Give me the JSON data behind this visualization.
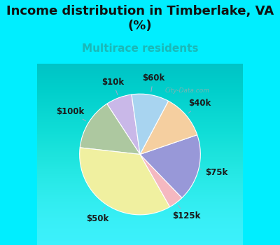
{
  "title": "Income distribution in Timberlake, VA\n(%)",
  "subtitle": "Multirace residents",
  "subtitle_color": "#1ab8b8",
  "background_outer": "#00eeff",
  "background_inner_color": "#d4ede4",
  "labels": [
    "$10k",
    "$100k",
    "$50k",
    "$125k",
    "$75k",
    "$40k",
    "$60k"
  ],
  "values": [
    7,
    14,
    35,
    4,
    18,
    12,
    10
  ],
  "colors": [
    "#c9b8e8",
    "#adc8a0",
    "#f0f0a0",
    "#f5b8c0",
    "#9898d8",
    "#f5cfa0",
    "#a8d4f0"
  ],
  "title_fontsize": 13,
  "subtitle_fontsize": 11,
  "startangle": 98,
  "label_fontsize": 8.5,
  "watermark": "City-Data.com"
}
